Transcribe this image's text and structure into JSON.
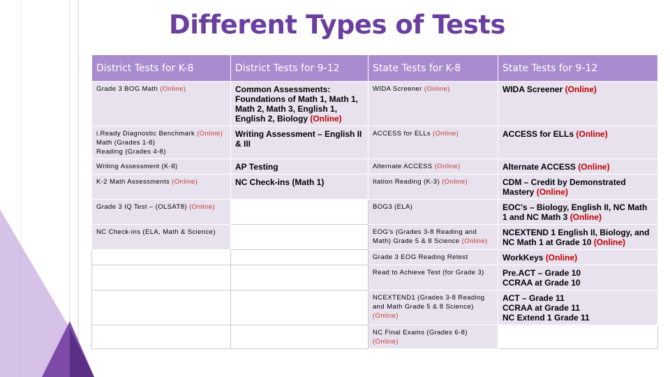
{
  "title": "Different Types of Tests",
  "table": {
    "header": [
      "District Tests for K-8",
      "District Tests for 9-12",
      "State Tests for K-8",
      "State Tests for 9-12"
    ],
    "rows": [
      [
        [
          "Grade 3 BOG Math ",
          {
            "text": "(Online)",
            "color": "#c0392b"
          }
        ],
        [
          "Common Assessments: Foundations of Math 1, Math 1, Math 2, Math 3, English 1, English 2, Biology ",
          {
            "text": "(Online)",
            "color": "#c00000"
          }
        ],
        [
          "WIDA Screener ",
          {
            "text": "(Online)",
            "color": "#c0392b"
          }
        ],
        [
          "WIDA Screener ",
          {
            "text": "(Online)",
            "color": "#c00000"
          }
        ]
      ],
      [
        [
          "i.Ready Diagnostic Benchmark ",
          {
            "text": "(Online)",
            "color": "#c0392b"
          },
          "\nMath (Grades 1-8)\nReading (Grades 4-8)"
        ],
        [
          "Writing Assessment – English II & III"
        ],
        [
          "ACCESS for ELLs ",
          {
            "text": "(Online)",
            "color": "#c0392b"
          }
        ],
        [
          "ACCESS for ELLs ",
          {
            "text": "(Online)",
            "color": "#c00000"
          }
        ]
      ],
      [
        [
          "Writing Assessment (K-8)"
        ],
        [
          "AP Testing"
        ],
        [
          "Alternate ACCESS ",
          {
            "text": "(Online)",
            "color": "#c0392b"
          }
        ],
        [
          "Alternate ACCESS ",
          {
            "text": "(Online)",
            "color": "#c00000"
          }
        ]
      ],
      [
        [
          "K-2 Math Assessments ",
          {
            "text": "(Online)",
            "color": "#c0392b"
          }
        ],
        [
          "NC Check-ins (Math 1)"
        ],
        [
          "Itation Reading (K-3) ",
          {
            "text": "(Online)",
            "color": "#c0392b"
          }
        ],
        [
          "CDM – Credit by Demonstrated Mastery ",
          {
            "text": "(Online)",
            "color": "#c00000"
          }
        ]
      ],
      [
        [
          "Grade 3 IQ Test – (OLSAT8) ",
          {
            "text": "(Online)",
            "color": "#c0392b"
          }
        ],
        null,
        [
          "BOG3 (ELA)"
        ],
        [
          "EOC's – Biology, English II, NC Math 1 and NC Math 3 ",
          {
            "text": "(Online)",
            "color": "#c00000"
          }
        ]
      ],
      [
        [
          "NC Check-ins  (ELA, Math & Science)"
        ],
        null,
        [
          "EOG's (Grades 3-8 Reading and Math) Grade 5 & 8 Science ",
          {
            "text": "(Online)",
            "color": "#c0392b"
          }
        ],
        [
          "NCEXTEND 1 English II, Biology, and NC Math 1 at Grade 10 ",
          {
            "text": "(Online)",
            "color": "#c00000"
          }
        ]
      ],
      [
        null,
        null,
        [
          "Grade 3 EOG Reading Retest"
        ],
        [
          "WorkKeys   ",
          {
            "text": "(Online)",
            "color": "#c00000"
          }
        ]
      ],
      [
        null,
        null,
        [
          "Read to Achieve Test (for Grade 3)"
        ],
        [
          "Pre.ACT – Grade 10\nCCRAA at Grade 10"
        ]
      ],
      [
        null,
        null,
        [
          "NCEXTEND1 (Grades 3-8 Reading and Math  Grade 5 & 8 Science) ",
          {
            "text": "(Online)",
            "color": "#c0392b"
          }
        ],
        [
          "ACT – Grade 11\nCCRAA at Grade 11\nNC Extend 1 Grade 11"
        ]
      ],
      [
        null,
        null,
        [
          "NC Final Exams (Grades 6-8) ",
          {
            "text": "(Online)",
            "color": "#c0392b"
          }
        ],
        null
      ]
    ]
  }
}
